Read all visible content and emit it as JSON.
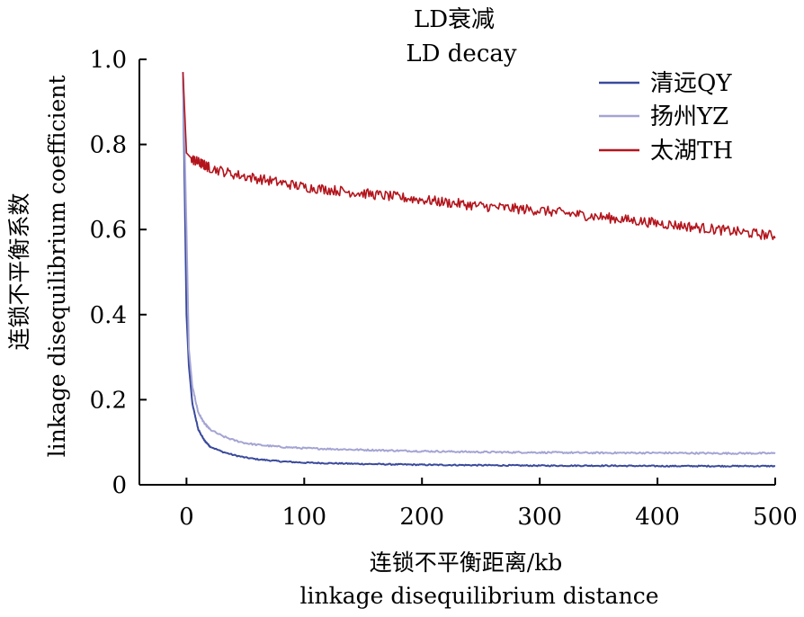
{
  "chart_data": {
    "type": "line",
    "title": "LD衰减",
    "subtitle": "LD decay",
    "xlabel": "连锁不平衡距离/kb",
    "xlabel_en": "linkage disequilibrium distance",
    "ylabel": "连锁不平衡系数",
    "ylabel_en": "linkage disequilibrium coefficient",
    "xlim": [
      -40,
      500
    ],
    "ylim": [
      0,
      1.0
    ],
    "x_ticks": [
      0,
      100,
      200,
      300,
      400,
      500
    ],
    "x_tick_labels": [
      "0",
      "100",
      "200",
      "300",
      "400",
      "500"
    ],
    "y_ticks": [
      0,
      0.2,
      0.4,
      0.6,
      0.8,
      1.0
    ],
    "y_tick_labels": [
      "0",
      "0.2",
      "0.4",
      "0.6",
      "0.8",
      "1.0"
    ],
    "grid": false,
    "legend_position": "top-right",
    "series": [
      {
        "name": "清远QY",
        "color": "#3a4a9c",
        "x": [
          -3,
          0,
          2,
          5,
          10,
          15,
          20,
          30,
          40,
          50,
          60,
          80,
          100,
          150,
          200,
          250,
          300,
          350,
          400,
          450,
          500
        ],
        "y": [
          0.97,
          0.4,
          0.28,
          0.19,
          0.13,
          0.105,
          0.09,
          0.078,
          0.07,
          0.064,
          0.06,
          0.055,
          0.052,
          0.049,
          0.047,
          0.046,
          0.045,
          0.045,
          0.044,
          0.044,
          0.044
        ]
      },
      {
        "name": "扬州YZ",
        "color": "#a4a4d4",
        "x": [
          -3,
          0,
          2,
          5,
          10,
          15,
          20,
          30,
          40,
          50,
          60,
          80,
          100,
          150,
          200,
          250,
          300,
          350,
          400,
          450,
          500
        ],
        "y": [
          0.97,
          0.6,
          0.32,
          0.23,
          0.17,
          0.145,
          0.13,
          0.115,
          0.105,
          0.098,
          0.094,
          0.089,
          0.086,
          0.082,
          0.079,
          0.077,
          0.076,
          0.075,
          0.075,
          0.074,
          0.074
        ]
      },
      {
        "name": "太湖TH",
        "color": "#b3141c",
        "x": [
          -3,
          0,
          5,
          20,
          40,
          60,
          80,
          100,
          150,
          200,
          250,
          300,
          350,
          400,
          450,
          500
        ],
        "y": [
          0.97,
          0.78,
          0.765,
          0.745,
          0.73,
          0.72,
          0.71,
          0.7,
          0.685,
          0.67,
          0.655,
          0.645,
          0.63,
          0.615,
          0.6,
          0.585
        ]
      }
    ]
  }
}
